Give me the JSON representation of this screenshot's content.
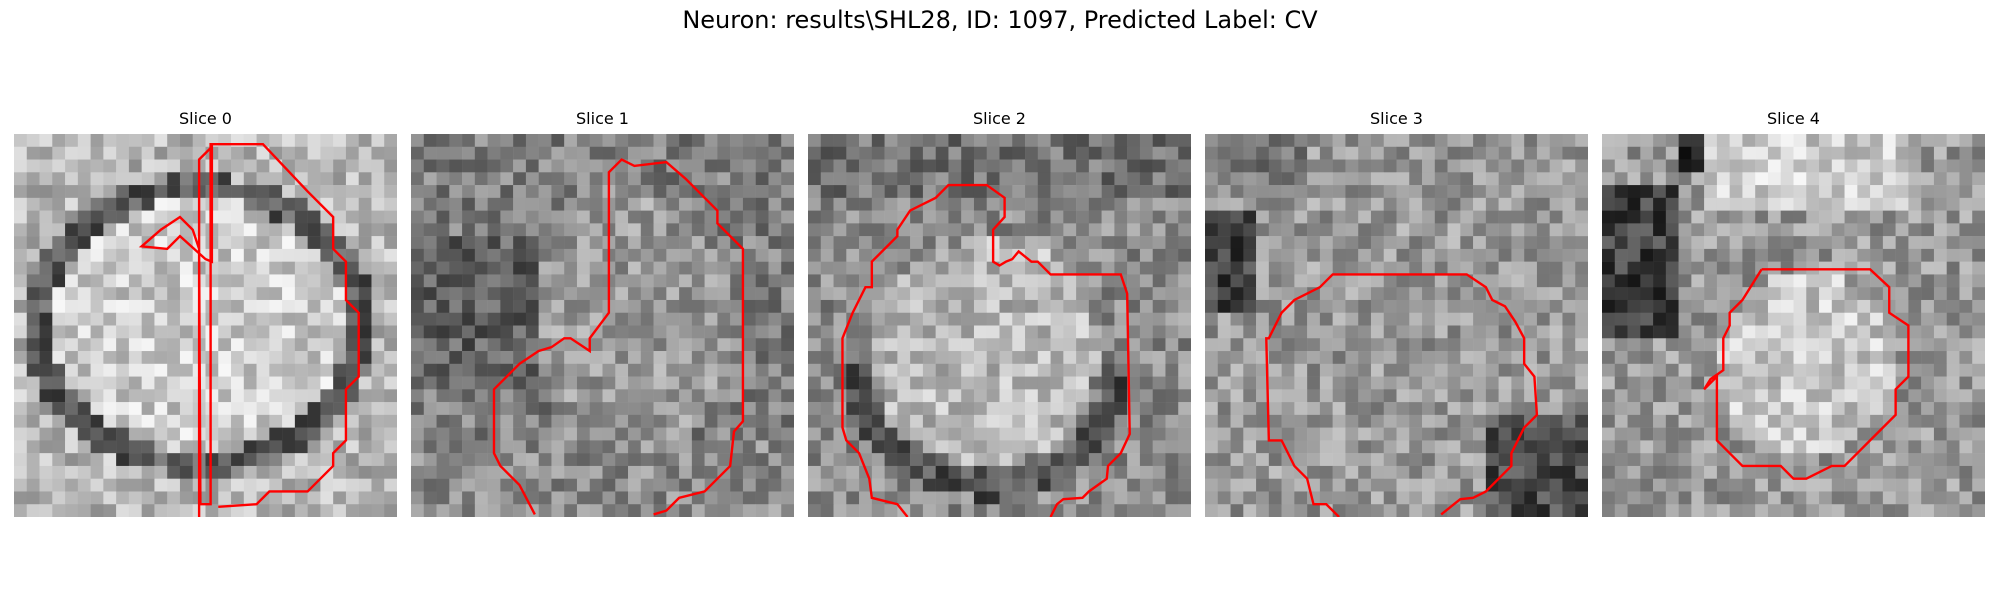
{
  "figure": {
    "title": "Neuron: results\\SHL28, ID: 1097, Predicted Label: CV",
    "contour_color": "#ff0000",
    "colormap": "grayscale"
  },
  "slices": [
    {
      "title": "Slice 0"
    },
    {
      "title": "Slice 1"
    },
    {
      "title": "Slice 2"
    },
    {
      "title": "Slice 3"
    },
    {
      "title": "Slice 4"
    }
  ]
}
